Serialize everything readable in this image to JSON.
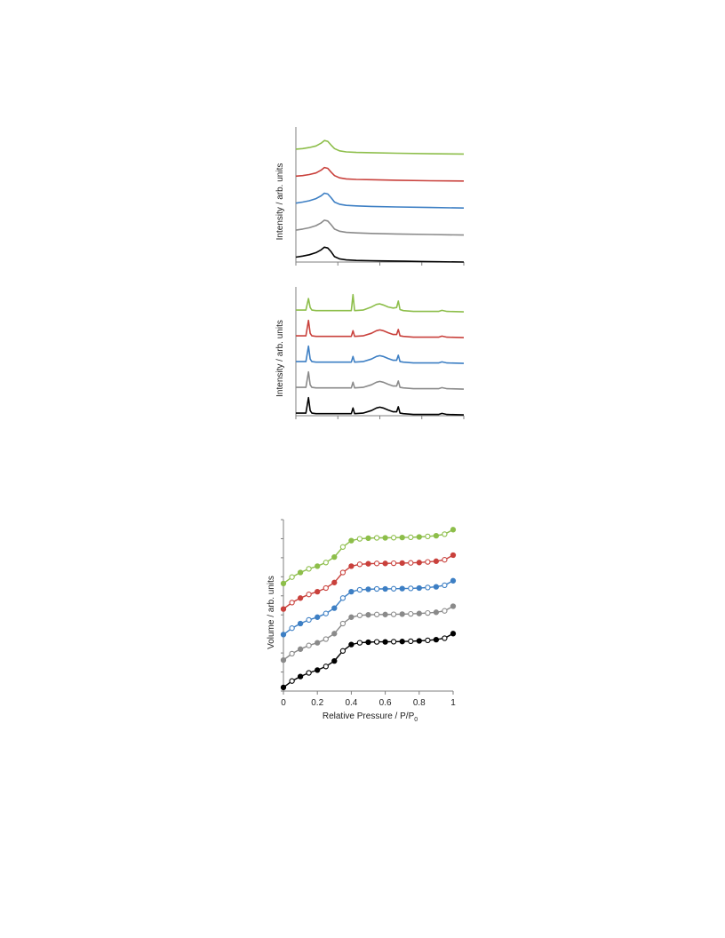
{
  "colors": {
    "green": "#8dbe4a",
    "red": "#c9413c",
    "blue": "#3d7fc4",
    "gray": "#8a8a8a",
    "black": "#000000",
    "axis": "#7f7f7f"
  },
  "chart_data": [
    {
      "type": "line",
      "ylabel": "Intensity / arb. units",
      "xlabel": "",
      "tick_labels": false,
      "grid": false,
      "series": [
        {
          "color": "black",
          "x": [
            0,
            0.04,
            0.08,
            0.12,
            0.15,
            0.17,
            0.19,
            0.21,
            0.23,
            0.26,
            0.3,
            0.36,
            0.45,
            0.55,
            0.65,
            0.75,
            0.85,
            1.0
          ],
          "y": [
            0.18,
            0.22,
            0.27,
            0.35,
            0.45,
            0.55,
            0.52,
            0.38,
            0.2,
            0.12,
            0.08,
            0.06,
            0.05,
            0.04,
            0.03,
            0.02,
            0.01,
            0.0
          ]
        },
        {
          "color": "gray",
          "x": [
            0,
            0.04,
            0.08,
            0.12,
            0.15,
            0.17,
            0.19,
            0.21,
            0.23,
            0.26,
            0.3,
            0.36,
            0.45,
            0.6,
            0.8,
            1.0
          ],
          "y": [
            1.18,
            1.22,
            1.27,
            1.35,
            1.45,
            1.55,
            1.52,
            1.38,
            1.22,
            1.14,
            1.1,
            1.08,
            1.06,
            1.04,
            1.02,
            1.0
          ]
        },
        {
          "color": "blue",
          "x": [
            0,
            0.04,
            0.08,
            0.12,
            0.15,
            0.17,
            0.19,
            0.21,
            0.23,
            0.26,
            0.3,
            0.36,
            0.45,
            0.6,
            0.8,
            1.0
          ],
          "y": [
            2.18,
            2.22,
            2.27,
            2.35,
            2.45,
            2.55,
            2.52,
            2.38,
            2.22,
            2.14,
            2.1,
            2.08,
            2.06,
            2.04,
            2.02,
            2.0
          ]
        },
        {
          "color": "red",
          "x": [
            0,
            0.04,
            0.08,
            0.12,
            0.15,
            0.17,
            0.19,
            0.21,
            0.23,
            0.26,
            0.3,
            0.36,
            0.45,
            0.6,
            0.8,
            1.0
          ],
          "y": [
            3.18,
            3.2,
            3.24,
            3.3,
            3.4,
            3.5,
            3.47,
            3.33,
            3.2,
            3.12,
            3.08,
            3.06,
            3.05,
            3.03,
            3.01,
            3.0
          ]
        },
        {
          "color": "green",
          "x": [
            0,
            0.04,
            0.08,
            0.12,
            0.15,
            0.17,
            0.19,
            0.21,
            0.23,
            0.26,
            0.3,
            0.36,
            0.45,
            0.6,
            0.8,
            1.0
          ],
          "y": [
            4.18,
            4.2,
            4.24,
            4.3,
            4.4,
            4.5,
            4.47,
            4.33,
            4.2,
            4.12,
            4.08,
            4.06,
            4.05,
            4.03,
            4.01,
            4.0
          ]
        }
      ]
    },
    {
      "type": "line",
      "ylabel": "Intensity / arb. units",
      "xlabel": "",
      "tick_labels": false,
      "grid": false,
      "series": [
        {
          "color": "black",
          "x": [
            0,
            0.06,
            0.075,
            0.085,
            0.095,
            0.12,
            0.2,
            0.33,
            0.34,
            0.35,
            0.4,
            0.45,
            0.48,
            0.5,
            0.52,
            0.55,
            0.58,
            0.6,
            0.61,
            0.62,
            0.64,
            0.7,
            0.8,
            0.85,
            0.87,
            0.9,
            1.0
          ],
          "y": [
            0.1,
            0.1,
            0.7,
            0.2,
            0.1,
            0.08,
            0.08,
            0.08,
            0.3,
            0.08,
            0.1,
            0.2,
            0.3,
            0.33,
            0.3,
            0.22,
            0.15,
            0.15,
            0.35,
            0.1,
            0.08,
            0.05,
            0.05,
            0.05,
            0.09,
            0.05,
            0.03
          ]
        },
        {
          "color": "gray",
          "x": [
            0,
            0.06,
            0.075,
            0.085,
            0.095,
            0.12,
            0.2,
            0.33,
            0.34,
            0.35,
            0.4,
            0.45,
            0.48,
            0.5,
            0.52,
            0.55,
            0.58,
            0.6,
            0.61,
            0.62,
            0.64,
            0.7,
            0.8,
            0.85,
            0.87,
            0.9,
            1.0
          ],
          "y": [
            1.1,
            1.1,
            1.7,
            1.2,
            1.1,
            1.08,
            1.08,
            1.08,
            1.3,
            1.08,
            1.1,
            1.2,
            1.3,
            1.33,
            1.3,
            1.22,
            1.15,
            1.15,
            1.35,
            1.1,
            1.08,
            1.05,
            1.05,
            1.05,
            1.09,
            1.05,
            1.03
          ]
        },
        {
          "color": "blue",
          "x": [
            0,
            0.06,
            0.075,
            0.085,
            0.095,
            0.12,
            0.2,
            0.33,
            0.34,
            0.35,
            0.4,
            0.45,
            0.48,
            0.5,
            0.52,
            0.55,
            0.58,
            0.6,
            0.61,
            0.62,
            0.64,
            0.7,
            0.8,
            0.85,
            0.87,
            0.9,
            1.0
          ],
          "y": [
            2.1,
            2.1,
            2.7,
            2.2,
            2.1,
            2.08,
            2.08,
            2.08,
            2.3,
            2.08,
            2.1,
            2.2,
            2.3,
            2.33,
            2.3,
            2.22,
            2.15,
            2.15,
            2.35,
            2.1,
            2.08,
            2.05,
            2.05,
            2.05,
            2.09,
            2.05,
            2.03
          ]
        },
        {
          "color": "red",
          "x": [
            0,
            0.06,
            0.075,
            0.085,
            0.095,
            0.12,
            0.2,
            0.33,
            0.34,
            0.35,
            0.4,
            0.45,
            0.48,
            0.5,
            0.52,
            0.55,
            0.58,
            0.6,
            0.61,
            0.62,
            0.64,
            0.7,
            0.8,
            0.85,
            0.87,
            0.9,
            1.0
          ],
          "y": [
            3.1,
            3.1,
            3.7,
            3.2,
            3.1,
            3.08,
            3.08,
            3.08,
            3.3,
            3.08,
            3.1,
            3.2,
            3.3,
            3.33,
            3.3,
            3.22,
            3.15,
            3.15,
            3.35,
            3.1,
            3.08,
            3.05,
            3.05,
            3.05,
            3.09,
            3.05,
            3.03
          ]
        },
        {
          "color": "green",
          "x": [
            0,
            0.06,
            0.075,
            0.085,
            0.095,
            0.12,
            0.2,
            0.33,
            0.34,
            0.35,
            0.4,
            0.45,
            0.48,
            0.5,
            0.52,
            0.55,
            0.58,
            0.6,
            0.61,
            0.62,
            0.64,
            0.7,
            0.8,
            0.85,
            0.87,
            0.9,
            1.0
          ],
          "y": [
            4.1,
            4.1,
            4.55,
            4.2,
            4.1,
            4.08,
            4.08,
            4.08,
            4.7,
            4.08,
            4.1,
            4.22,
            4.32,
            4.34,
            4.3,
            4.22,
            4.18,
            4.2,
            4.45,
            4.12,
            4.08,
            4.05,
            4.05,
            4.05,
            4.09,
            4.05,
            4.03
          ]
        }
      ]
    },
    {
      "type": "scatter",
      "xlabel": "Relative Pressure / P/P",
      "xlabel_subscript": "0",
      "ylabel": "Volume / arb. units",
      "xlim": [
        0,
        1
      ],
      "xticks": [
        "0",
        "0.2",
        "0.4",
        "0.6",
        "0.8",
        "1"
      ],
      "grid": false,
      "markers": "filled (adsorption) and open (desorption) circles",
      "series": [
        {
          "color": "black",
          "x": [
            0,
            0.05,
            0.1,
            0.15,
            0.2,
            0.25,
            0.3,
            0.35,
            0.4,
            0.45,
            0.5,
            0.55,
            0.6,
            0.65,
            0.7,
            0.75,
            0.8,
            0.85,
            0.9,
            0.95,
            1.0
          ],
          "y": [
            0.0,
            0.35,
            0.6,
            0.8,
            0.95,
            1.15,
            1.45,
            2.0,
            2.35,
            2.45,
            2.48,
            2.5,
            2.5,
            2.51,
            2.52,
            2.53,
            2.55,
            2.58,
            2.62,
            2.7,
            2.95
          ]
        },
        {
          "color": "gray",
          "x": [
            0,
            0.05,
            0.1,
            0.15,
            0.2,
            0.25,
            0.3,
            0.35,
            0.4,
            0.45,
            0.5,
            0.55,
            0.6,
            0.65,
            0.7,
            0.75,
            0.8,
            0.85,
            0.9,
            0.95,
            1.0
          ],
          "y": [
            1.5,
            1.85,
            2.1,
            2.3,
            2.45,
            2.65,
            2.95,
            3.5,
            3.85,
            3.95,
            3.98,
            4.0,
            4.0,
            4.01,
            4.02,
            4.03,
            4.05,
            4.08,
            4.12,
            4.2,
            4.45
          ]
        },
        {
          "color": "blue",
          "x": [
            0,
            0.05,
            0.1,
            0.15,
            0.2,
            0.25,
            0.3,
            0.35,
            0.4,
            0.45,
            0.5,
            0.55,
            0.6,
            0.65,
            0.7,
            0.75,
            0.8,
            0.85,
            0.9,
            0.95,
            1.0
          ],
          "y": [
            2.9,
            3.25,
            3.5,
            3.7,
            3.85,
            4.05,
            4.35,
            4.9,
            5.25,
            5.35,
            5.38,
            5.4,
            5.4,
            5.41,
            5.42,
            5.43,
            5.45,
            5.48,
            5.52,
            5.6,
            5.85
          ]
        },
        {
          "color": "red",
          "x": [
            0,
            0.05,
            0.1,
            0.15,
            0.2,
            0.25,
            0.3,
            0.35,
            0.4,
            0.45,
            0.5,
            0.55,
            0.6,
            0.65,
            0.7,
            0.75,
            0.8,
            0.85,
            0.9,
            0.95,
            1.0
          ],
          "y": [
            4.3,
            4.65,
            4.9,
            5.1,
            5.25,
            5.45,
            5.75,
            6.3,
            6.65,
            6.75,
            6.78,
            6.8,
            6.8,
            6.81,
            6.82,
            6.83,
            6.85,
            6.88,
            6.92,
            7.0,
            7.25
          ]
        },
        {
          "color": "green",
          "x": [
            0,
            0.05,
            0.1,
            0.15,
            0.2,
            0.25,
            0.3,
            0.35,
            0.4,
            0.45,
            0.5,
            0.55,
            0.6,
            0.65,
            0.7,
            0.75,
            0.8,
            0.85,
            0.9,
            0.95,
            1.0
          ],
          "y": [
            5.7,
            6.05,
            6.3,
            6.5,
            6.65,
            6.85,
            7.15,
            7.7,
            8.05,
            8.15,
            8.18,
            8.2,
            8.2,
            8.21,
            8.22,
            8.23,
            8.25,
            8.28,
            8.32,
            8.4,
            8.65
          ]
        }
      ]
    }
  ]
}
